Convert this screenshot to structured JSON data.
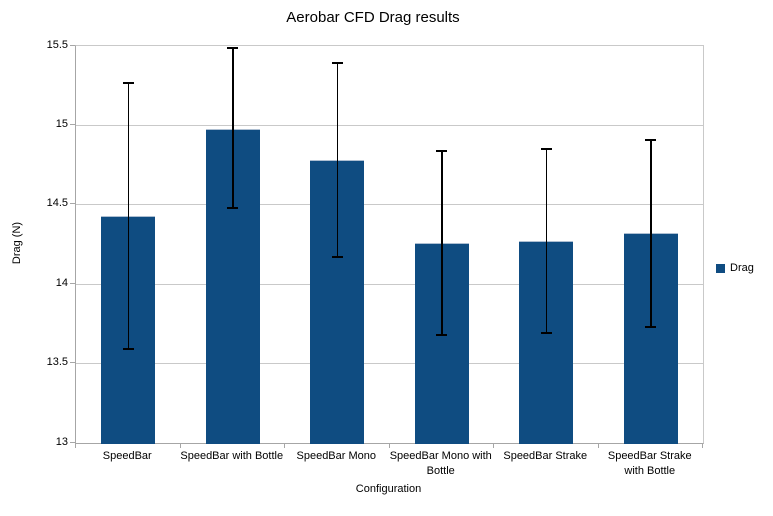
{
  "chart_data": {
    "type": "bar",
    "title": "Aerobar CFD Drag results",
    "xlabel": "Configuration",
    "ylabel": "Drag (N)",
    "ylim": [
      13,
      15.5
    ],
    "yticks": [
      "13",
      "13.5",
      "14",
      "14.5",
      "15",
      "15.5"
    ],
    "categories": [
      "SpeedBar",
      "SpeedBar with Bottle",
      "SpeedBar Mono",
      "SpeedBar Mono with Bottle",
      "SpeedBar Strake",
      "SpeedBar Strake with Bottle"
    ],
    "series": [
      {
        "name": "Drag",
        "values": [
          14.43,
          14.98,
          14.78,
          14.26,
          14.27,
          14.32
        ],
        "error_low": [
          13.59,
          14.48,
          14.17,
          13.68,
          13.69,
          13.73
        ],
        "error_high": [
          15.27,
          15.49,
          15.39,
          14.84,
          14.85,
          14.91
        ]
      }
    ],
    "legend": {
      "position": "right",
      "entries": [
        "Drag"
      ]
    },
    "grid": true,
    "colors": {
      "bar": "#0F4C81",
      "bar_border": "#AEBFD2",
      "grid": "#C9C9C9",
      "axis": "#A6A6A6",
      "error_bar": "#000000",
      "text": "#000000",
      "background": "#FFFFFF"
    }
  }
}
